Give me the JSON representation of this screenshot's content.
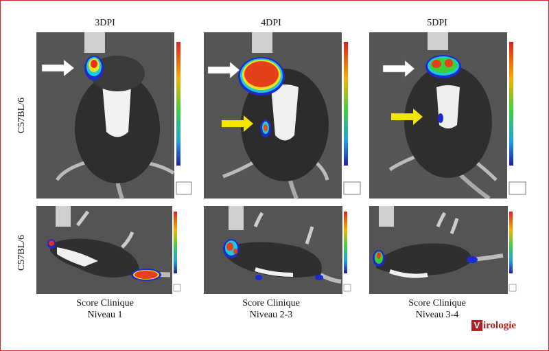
{
  "columns": [
    {
      "title": "3DPI",
      "caption_line1": "Score Clinique",
      "caption_line2": "Niveau 1"
    },
    {
      "title": "4DPI",
      "caption_line1": "Score Clinique",
      "caption_line2": "Niveau 2-3"
    },
    {
      "title": "5DPI",
      "caption_line1": "Score Clinique",
      "caption_line2": "Niveau 3-4"
    }
  ],
  "rows": [
    {
      "label": "C57BL/6"
    },
    {
      "label": "C57BL/6"
    }
  ],
  "logo": {
    "mark": "V",
    "text": "irologie"
  },
  "colors": {
    "frame": "#d9262c",
    "arrow_white": "#ffffff",
    "arrow_yellow": "#f2e600",
    "logo_red": "#b22024"
  }
}
